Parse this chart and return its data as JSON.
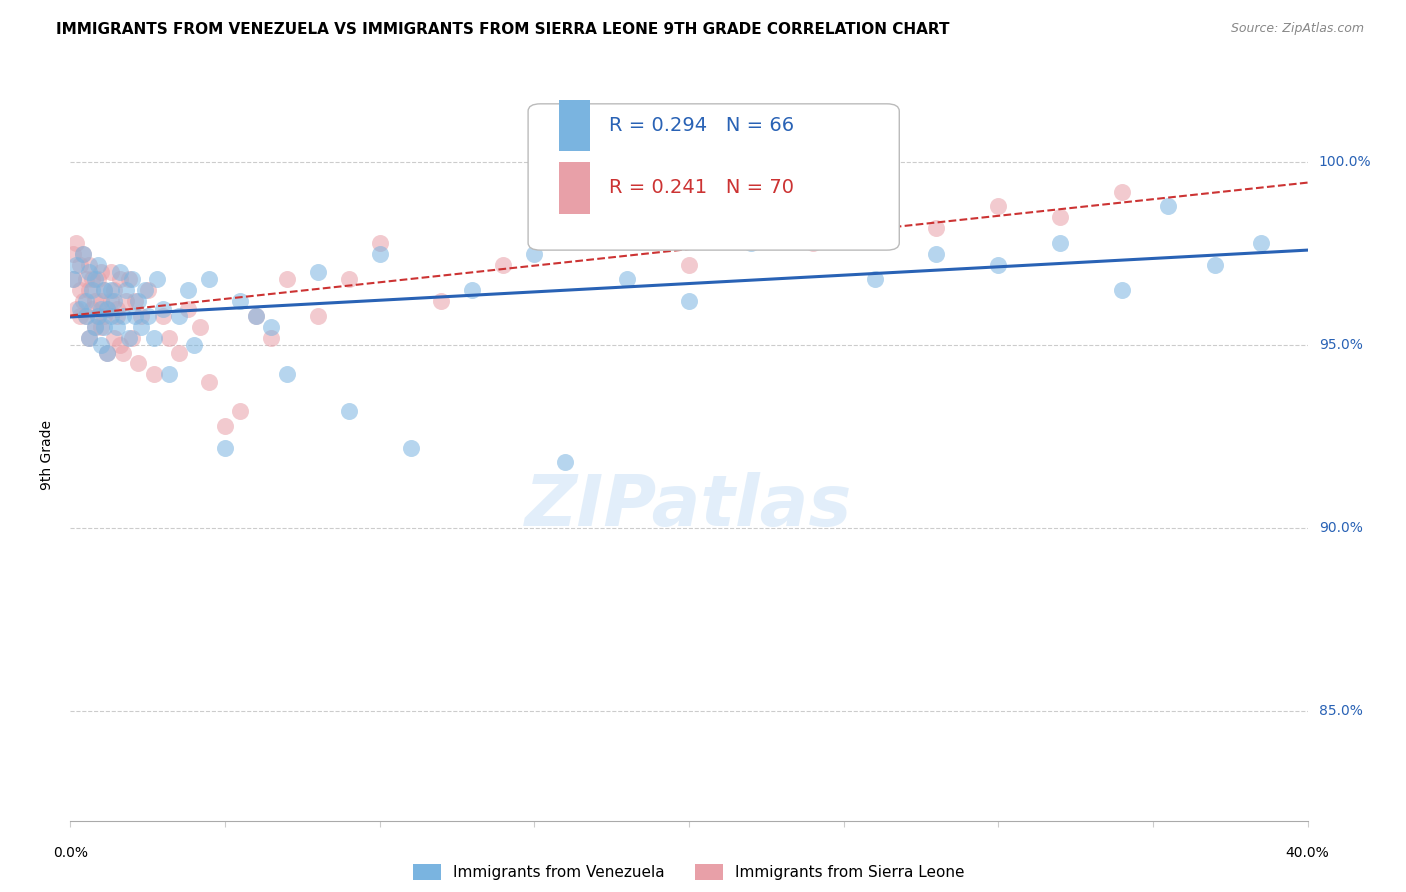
{
  "title": "IMMIGRANTS FROM VENEZUELA VS IMMIGRANTS FROM SIERRA LEONE 9TH GRADE CORRELATION CHART",
  "source": "Source: ZipAtlas.com",
  "ylabel": "9th Grade",
  "ytick_labels": [
    "100.0%",
    "95.0%",
    "90.0%",
    "85.0%"
  ],
  "ytick_values": [
    1.0,
    0.95,
    0.9,
    0.85
  ],
  "xlim": [
    0.0,
    0.4
  ],
  "ylim": [
    0.82,
    1.02
  ],
  "legend_r_venezuela": "R = 0.294",
  "legend_n_venezuela": "N = 66",
  "legend_r_sierraleone": "R = 0.241",
  "legend_n_sierraleone": "N = 70",
  "color_venezuela": "#7ab4e0",
  "color_sierraleone": "#e8a0a8",
  "color_trendline_venezuela": "#2962b5",
  "color_trendline_sierraleone": "#cc3333",
  "venezuela_x": [
    0.001,
    0.002,
    0.003,
    0.004,
    0.005,
    0.005,
    0.006,
    0.006,
    0.007,
    0.008,
    0.008,
    0.009,
    0.009,
    0.01,
    0.01,
    0.011,
    0.011,
    0.012,
    0.012,
    0.013,
    0.013,
    0.014,
    0.015,
    0.016,
    0.017,
    0.018,
    0.019,
    0.02,
    0.021,
    0.022,
    0.023,
    0.024,
    0.025,
    0.027,
    0.028,
    0.03,
    0.032,
    0.035,
    0.038,
    0.04,
    0.045,
    0.05,
    0.055,
    0.06,
    0.065,
    0.07,
    0.08,
    0.09,
    0.1,
    0.11,
    0.13,
    0.15,
    0.16,
    0.17,
    0.18,
    0.2,
    0.22,
    0.24,
    0.26,
    0.28,
    0.3,
    0.32,
    0.34,
    0.355,
    0.37,
    0.385
  ],
  "venezuela_y": [
    0.968,
    0.972,
    0.96,
    0.975,
    0.962,
    0.958,
    0.97,
    0.952,
    0.965,
    0.955,
    0.968,
    0.958,
    0.972,
    0.96,
    0.95,
    0.965,
    0.955,
    0.96,
    0.948,
    0.965,
    0.958,
    0.962,
    0.955,
    0.97,
    0.958,
    0.965,
    0.952,
    0.968,
    0.958,
    0.962,
    0.955,
    0.965,
    0.958,
    0.952,
    0.968,
    0.96,
    0.942,
    0.958,
    0.965,
    0.95,
    0.968,
    0.922,
    0.962,
    0.958,
    0.955,
    0.942,
    0.97,
    0.932,
    0.975,
    0.922,
    0.965,
    0.975,
    0.918,
    0.982,
    0.968,
    0.962,
    0.978,
    0.988,
    0.968,
    0.975,
    0.972,
    0.978,
    0.965,
    0.988,
    0.972,
    0.978
  ],
  "sierraleone_x": [
    0.001,
    0.001,
    0.002,
    0.002,
    0.003,
    0.003,
    0.003,
    0.004,
    0.004,
    0.005,
    0.005,
    0.006,
    0.006,
    0.006,
    0.007,
    0.007,
    0.008,
    0.008,
    0.009,
    0.009,
    0.01,
    0.01,
    0.01,
    0.011,
    0.011,
    0.012,
    0.012,
    0.013,
    0.013,
    0.014,
    0.014,
    0.015,
    0.015,
    0.016,
    0.016,
    0.017,
    0.018,
    0.019,
    0.02,
    0.021,
    0.022,
    0.023,
    0.025,
    0.027,
    0.03,
    0.032,
    0.035,
    0.038,
    0.042,
    0.045,
    0.05,
    0.055,
    0.06,
    0.065,
    0.07,
    0.08,
    0.09,
    0.1,
    0.12,
    0.14,
    0.16,
    0.18,
    0.2,
    0.22,
    0.24,
    0.26,
    0.28,
    0.3,
    0.32,
    0.34
  ],
  "sierraleone_y": [
    0.968,
    0.975,
    0.96,
    0.978,
    0.965,
    0.972,
    0.958,
    0.975,
    0.962,
    0.968,
    0.958,
    0.972,
    0.952,
    0.965,
    0.96,
    0.968,
    0.955,
    0.962,
    0.968,
    0.958,
    0.962,
    0.955,
    0.97,
    0.958,
    0.965,
    0.96,
    0.948,
    0.962,
    0.97,
    0.952,
    0.965,
    0.958,
    0.96,
    0.95,
    0.968,
    0.948,
    0.962,
    0.968,
    0.952,
    0.962,
    0.945,
    0.958,
    0.965,
    0.942,
    0.958,
    0.952,
    0.948,
    0.96,
    0.955,
    0.94,
    0.928,
    0.932,
    0.958,
    0.952,
    0.968,
    0.958,
    0.968,
    0.978,
    0.962,
    0.972,
    0.988,
    0.982,
    0.972,
    0.985,
    0.978,
    0.99,
    0.982,
    0.988,
    0.985,
    0.992
  ],
  "grid_color": "#cccccc",
  "background_color": "#ffffff"
}
